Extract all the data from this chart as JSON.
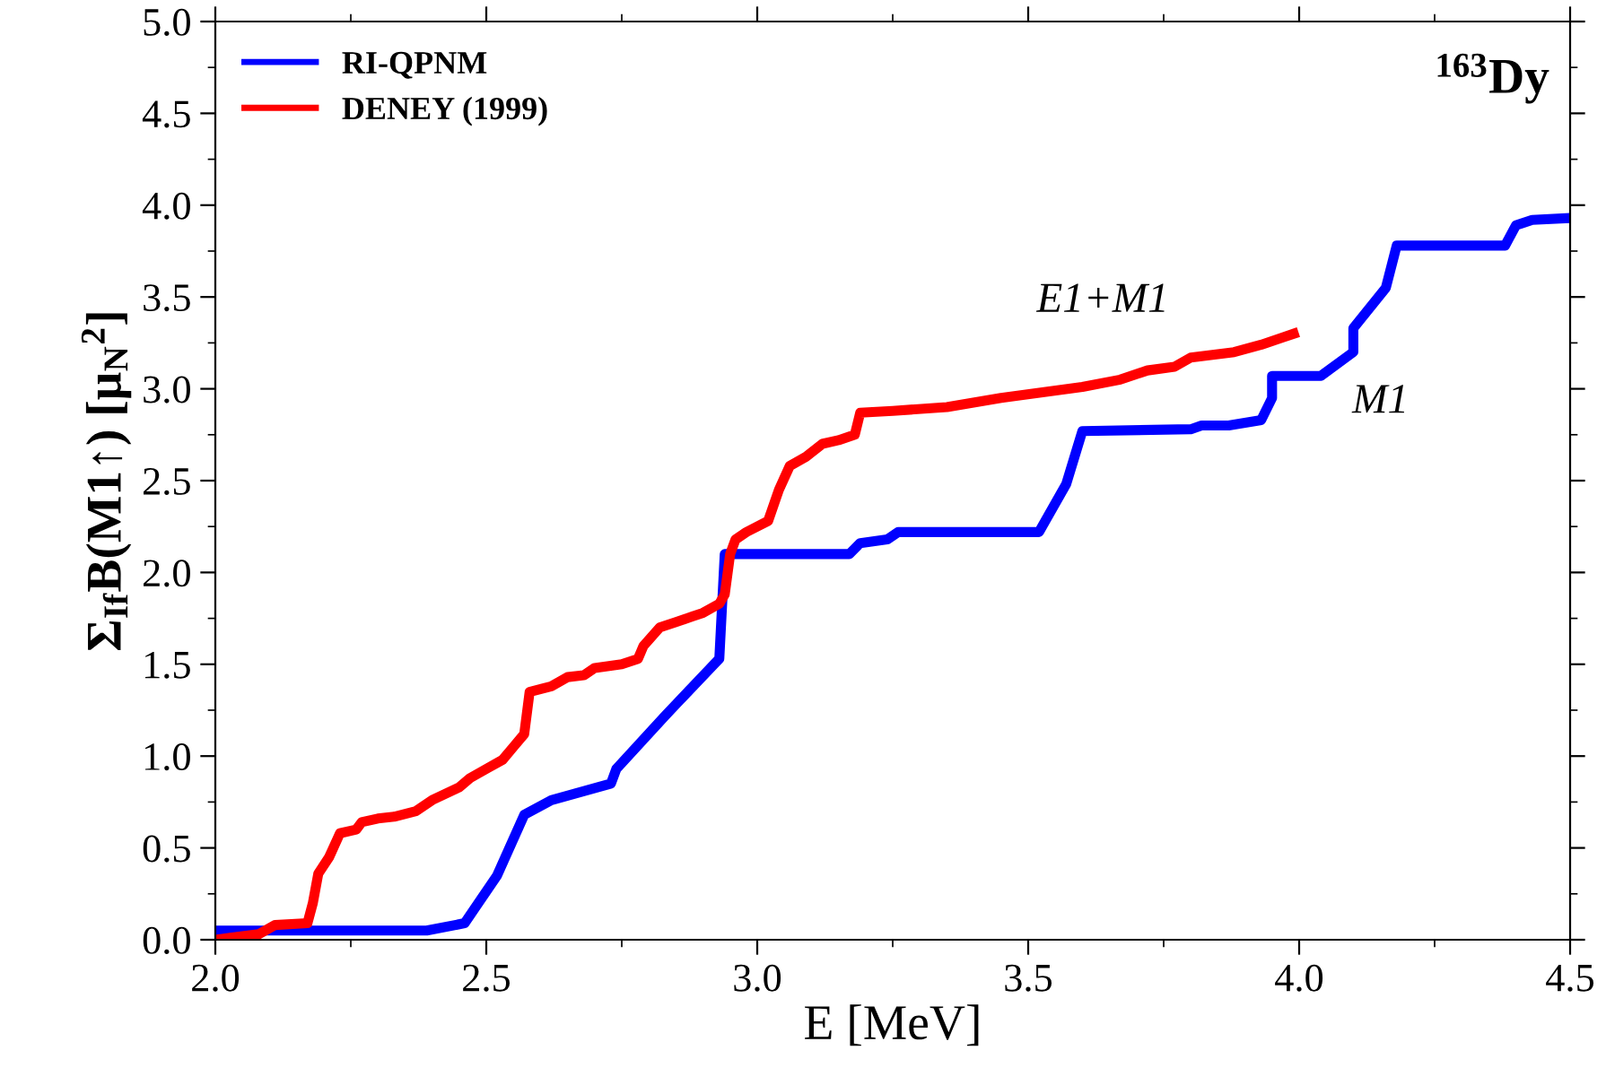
{
  "chart_data": {
    "type": "line",
    "xlabel": "E [MeV]",
    "ylabel": "Σ$_{If}$B(M1↑) [μ$_{N}$$^{2}$]",
    "xlim": [
      2.0,
      4.5
    ],
    "ylim": [
      0.0,
      5.0
    ],
    "xticks": [
      {
        "value": 2.0,
        "label": "2.0"
      },
      {
        "value": 2.5,
        "label": "2.5"
      },
      {
        "value": 3.0,
        "label": "3.0"
      },
      {
        "value": 3.5,
        "label": "3.5"
      },
      {
        "value": 4.0,
        "label": "4.0"
      },
      {
        "value": 4.5,
        "label": "4.5"
      }
    ],
    "yticks": [
      {
        "value": 0.0,
        "label": "0.0"
      },
      {
        "value": 0.5,
        "label": "0.5"
      },
      {
        "value": 1.0,
        "label": "1.0"
      },
      {
        "value": 1.5,
        "label": "1.5"
      },
      {
        "value": 2.0,
        "label": "2.0"
      },
      {
        "value": 2.5,
        "label": "2.5"
      },
      {
        "value": 3.0,
        "label": "3.0"
      },
      {
        "value": 3.5,
        "label": "3.5"
      },
      {
        "value": 4.0,
        "label": "4.0"
      },
      {
        "value": 4.5,
        "label": "4.5"
      },
      {
        "value": 5.0,
        "label": "5.0"
      }
    ],
    "legend": "top left",
    "grid": false,
    "marker": "none",
    "line_style": "solid",
    "annotations": [
      "$^{163}$Dy",
      "E1+M1",
      "M1"
    ],
    "series": [
      {
        "name": "RI-QPNM",
        "color": "#0000ff",
        "x": [
          2.0,
          2.39,
          2.46,
          2.52,
          2.57,
          2.62,
          2.73,
          2.74,
          2.83,
          2.93,
          2.94,
          3.17,
          3.19,
          3.24,
          3.26,
          3.52,
          3.57,
          3.6,
          3.8,
          3.82,
          3.87,
          3.93,
          3.95,
          3.95,
          4.04,
          4.1,
          4.1,
          4.16,
          4.18,
          4.38,
          4.4,
          4.43,
          4.5
        ],
        "values": [
          0.05,
          0.05,
          0.09,
          0.35,
          0.68,
          0.76,
          0.85,
          0.93,
          1.22,
          1.53,
          2.1,
          2.1,
          2.16,
          2.18,
          2.22,
          2.22,
          2.48,
          2.77,
          2.78,
          2.8,
          2.8,
          2.83,
          2.95,
          3.07,
          3.07,
          3.2,
          3.33,
          3.55,
          3.78,
          3.78,
          3.89,
          3.92,
          3.93
        ]
      },
      {
        "name": "DENEY (1999)",
        "color": "#ff0000",
        "x": [
          2.0,
          2.08,
          2.11,
          2.17,
          2.18,
          2.19,
          2.21,
          2.23,
          2.26,
          2.27,
          2.3,
          2.33,
          2.37,
          2.4,
          2.45,
          2.47,
          2.5,
          2.53,
          2.55,
          2.57,
          2.58,
          2.62,
          2.65,
          2.68,
          2.7,
          2.75,
          2.78,
          2.79,
          2.82,
          2.85,
          2.88,
          2.9,
          2.93,
          2.94,
          2.95,
          2.96,
          2.98,
          3.02,
          3.04,
          3.06,
          3.09,
          3.12,
          3.15,
          3.18,
          3.19,
          3.25,
          3.35,
          3.45,
          3.6,
          3.67,
          3.72,
          3.77,
          3.8,
          3.88,
          3.93,
          3.97,
          3.99
        ],
        "values": [
          0.0,
          0.03,
          0.08,
          0.09,
          0.2,
          0.36,
          0.45,
          0.58,
          0.6,
          0.64,
          0.66,
          0.67,
          0.7,
          0.76,
          0.83,
          0.88,
          0.93,
          0.98,
          1.05,
          1.12,
          1.35,
          1.38,
          1.43,
          1.44,
          1.48,
          1.5,
          1.53,
          1.6,
          1.7,
          1.73,
          1.76,
          1.78,
          1.83,
          1.88,
          2.1,
          2.18,
          2.22,
          2.28,
          2.45,
          2.58,
          2.63,
          2.7,
          2.72,
          2.75,
          2.87,
          2.88,
          2.9,
          2.95,
          3.01,
          3.05,
          3.1,
          3.12,
          3.17,
          3.2,
          3.24,
          3.28,
          3.3
        ]
      }
    ]
  }
}
